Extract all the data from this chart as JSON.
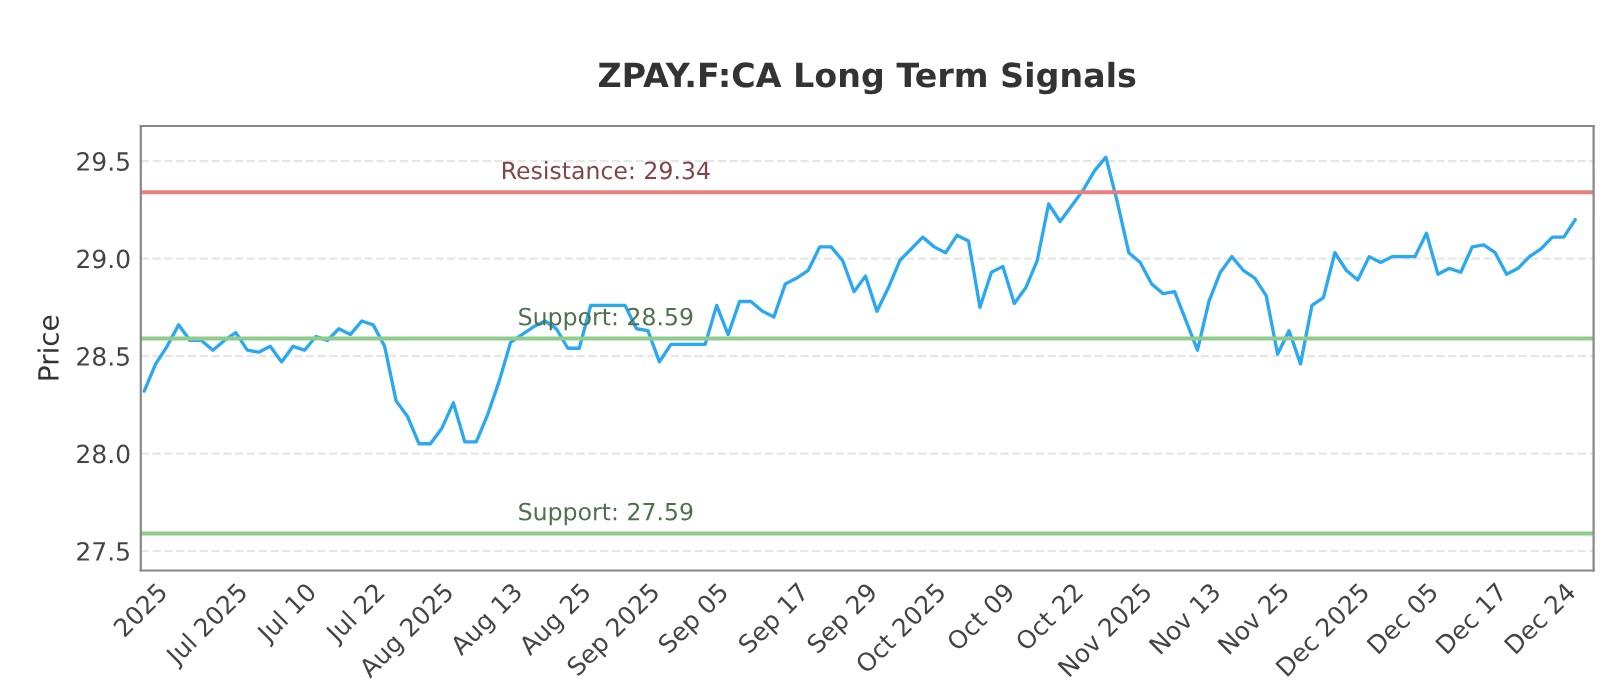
{
  "chart_data": {
    "type": "line",
    "title": "ZPAY.F:CA Long Term Signals",
    "ylabel": "Price",
    "categories": [
      null,
      "2025",
      null,
      null,
      null,
      null,
      null,
      null,
      "Jul 2025",
      null,
      null,
      null,
      null,
      null,
      "Jul 10",
      null,
      null,
      null,
      null,
      null,
      "Jul 22",
      null,
      null,
      null,
      null,
      null,
      "Aug 2025",
      null,
      null,
      null,
      null,
      null,
      "Aug 13",
      null,
      null,
      null,
      null,
      null,
      "Aug 25",
      null,
      null,
      null,
      null,
      null,
      "Sep 2025",
      null,
      null,
      null,
      null,
      null,
      "Sep 05",
      null,
      null,
      null,
      null,
      null,
      null,
      "Sep 17",
      null,
      null,
      null,
      null,
      null,
      "Sep 29",
      null,
      null,
      null,
      null,
      null,
      "Oct 2025",
      null,
      null,
      null,
      null,
      null,
      "Oct 09",
      null,
      null,
      null,
      null,
      null,
      "Oct 22",
      null,
      null,
      null,
      null,
      null,
      "Nov 2025",
      null,
      null,
      null,
      null,
      null,
      "Nov 13",
      null,
      null,
      null,
      null,
      null,
      "Nov 25",
      null,
      null,
      null,
      null,
      null,
      null,
      "Dec 2025",
      null,
      null,
      null,
      null,
      null,
      "Dec 05",
      null,
      null,
      null,
      null,
      null,
      "Dec 17",
      null,
      null,
      null,
      null,
      null,
      "Dec 24",
      null
    ],
    "series": [
      {
        "color": "#2aa8f2",
        "values": [
          28.32,
          28.46,
          28.55,
          28.66,
          28.58,
          28.58,
          28.53,
          28.58,
          28.62,
          28.53,
          28.52,
          28.55,
          28.47,
          28.55,
          28.53,
          28.6,
          28.58,
          28.64,
          28.61,
          28.68,
          28.66,
          28.55,
          28.27,
          28.19,
          28.05,
          28.05,
          28.13,
          28.26,
          28.06,
          28.06,
          28.2,
          28.37,
          28.57,
          28.61,
          28.65,
          28.68,
          28.64,
          28.54,
          28.54,
          28.76,
          28.76,
          28.76,
          28.76,
          28.64,
          28.63,
          28.47,
          28.56,
          28.56,
          28.56,
          28.56,
          28.76,
          28.61,
          28.78,
          28.78,
          28.73,
          28.7,
          28.87,
          28.9,
          28.94,
          29.06,
          29.06,
          28.99,
          28.83,
          28.91,
          28.73,
          28.85,
          28.99,
          29.05,
          29.11,
          29.06,
          29.03,
          29.12,
          29.09,
          28.75,
          28.93,
          28.96,
          28.77,
          28.85,
          28.99,
          29.28,
          29.19,
          29.27,
          29.35,
          29.45,
          29.52,
          29.29,
          29.03,
          28.98,
          28.87,
          28.82,
          28.83,
          28.68,
          28.53,
          28.78,
          28.93,
          29.01,
          28.94,
          28.9,
          28.81,
          28.51,
          28.63,
          28.46,
          28.76,
          28.8,
          29.03,
          28.94,
          28.89,
          29.01,
          28.98,
          29.01,
          29.01,
          29.01,
          29.13,
          28.92,
          28.95,
          28.93,
          29.06,
          29.07,
          29.03,
          28.92,
          28.95,
          29.01,
          29.05,
          29.11,
          29.11,
          29.2
        ]
      }
    ],
    "ylim": [
      27.4,
      29.68
    ],
    "yticks": [
      27.5,
      {
        "value": 28,
        "label": "28.0"
      },
      28.5,
      {
        "value": 29,
        "label": "29.0"
      },
      29.5
    ],
    "grid": "y",
    "marker": "none",
    "line_style": "solid",
    "legend": false,
    "ref_lines": [
      {
        "axis": "y",
        "value": 29.34,
        "label": "Resistance: 29.34",
        "color": "#e8807f"
      },
      {
        "axis": "y",
        "value": 28.59,
        "label": "Support: 28.59",
        "color": "#8fcc8a"
      },
      {
        "axis": "y",
        "value": 27.59,
        "label": "Support: 27.59",
        "color": "#8fcc8a"
      }
    ]
  }
}
